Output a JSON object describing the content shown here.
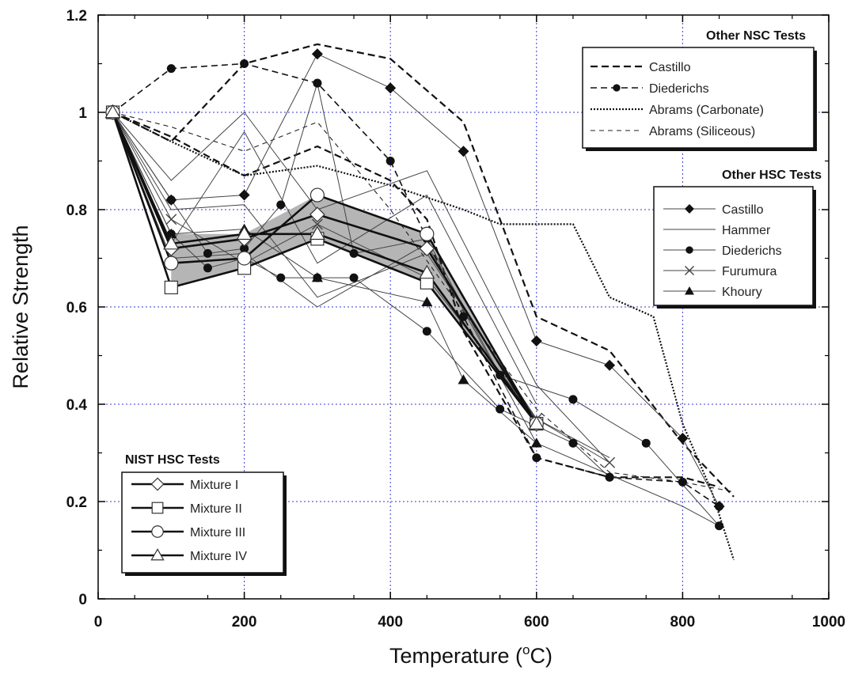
{
  "chart_data": {
    "type": "line",
    "xlabel": "Temperature (",
    "xlabel_sup": "o",
    "xlabel_unit": "C)",
    "ylabel": "Relative Strength",
    "xlim": [
      0,
      1000
    ],
    "ylim": [
      0,
      1.2
    ],
    "xticks": [
      "0",
      "200",
      "400",
      "600",
      "800",
      "1000"
    ],
    "yticks": [
      "0",
      "0.2",
      "0.4",
      "0.6",
      "0.8",
      "1",
      "1.2"
    ],
    "grid": true,
    "band": {
      "upper": [
        [
          100,
          0.75
        ],
        [
          200,
          0.75
        ],
        [
          300,
          0.83
        ],
        [
          450,
          0.75
        ],
        [
          600,
          0.36
        ]
      ],
      "lower": [
        [
          100,
          0.64
        ],
        [
          200,
          0.68
        ],
        [
          300,
          0.74
        ],
        [
          450,
          0.65
        ],
        [
          600,
          0.36
        ]
      ]
    },
    "legends": [
      {
        "title": "Other NSC Tests",
        "entries": [
          {
            "label": "Castillo",
            "style": "dash-bold",
            "marker": "none"
          },
          {
            "label": "Diederichs",
            "style": "dash",
            "marker": "circle"
          },
          {
            "label": "Abrams (Carbonate)",
            "style": "dot",
            "marker": "none"
          },
          {
            "label": "Abrams (Siliceous)",
            "style": "dash-thin",
            "marker": "none"
          }
        ]
      },
      {
        "title": "Other HSC Tests",
        "entries": [
          {
            "label": "Castillo",
            "style": "solid",
            "marker": "diamond-filled"
          },
          {
            "label": "Hammer",
            "style": "solid",
            "marker": "none"
          },
          {
            "label": "Diederichs",
            "style": "solid",
            "marker": "circle"
          },
          {
            "label": "Furumura",
            "style": "solid",
            "marker": "x"
          },
          {
            "label": "Khoury",
            "style": "solid",
            "marker": "triangle-filled"
          }
        ]
      },
      {
        "title": "NIST HSC Tests",
        "entries": [
          {
            "label": "Mixture I",
            "style": "solid-bold",
            "marker": "diamond-open"
          },
          {
            "label": "Mixture II",
            "style": "solid-bold",
            "marker": "square-open"
          },
          {
            "label": "Mixture III",
            "style": "solid-bold",
            "marker": "circle-open"
          },
          {
            "label": "Mixture IV",
            "style": "solid-bold",
            "marker": "triangle-open"
          }
        ]
      }
    ],
    "series": [
      {
        "name": "Castillo",
        "group": "Other NSC Tests",
        "style": "dash-bold",
        "marker": "none",
        "points": [
          [
            20,
            1.0
          ],
          [
            100,
            0.94
          ],
          [
            200,
            1.1
          ],
          [
            300,
            1.14
          ],
          [
            400,
            1.11
          ],
          [
            500,
            0.98
          ],
          [
            600,
            0.58
          ],
          [
            700,
            0.51
          ],
          [
            800,
            0.32
          ],
          [
            870,
            0.21
          ]
        ]
      },
      {
        "name": "Castillo",
        "group": "Other NSC Tests",
        "style": "dash-bold",
        "marker": "none",
        "points": [
          [
            20,
            1.0
          ],
          [
            100,
            0.95
          ],
          [
            200,
            0.87
          ],
          [
            300,
            0.93
          ],
          [
            400,
            0.86
          ],
          [
            450,
            0.78
          ],
          [
            500,
            0.55
          ],
          [
            600,
            0.29
          ],
          [
            700,
            0.25
          ],
          [
            800,
            0.25
          ],
          [
            850,
            0.23
          ]
        ]
      },
      {
        "name": "Diederichs",
        "group": "Other NSC Tests",
        "style": "dash",
        "marker": "circle",
        "points": [
          [
            20,
            1.0
          ],
          [
            100,
            1.09
          ],
          [
            200,
            1.1
          ],
          [
            300,
            1.06
          ],
          [
            400,
            0.9
          ],
          [
            500,
            0.58
          ],
          [
            600,
            0.29
          ],
          [
            700,
            0.25
          ],
          [
            800,
            0.24
          ],
          [
            850,
            0.19
          ]
        ]
      },
      {
        "name": "Abrams (Carbonate)",
        "group": "Other NSC Tests",
        "style": "dot",
        "marker": "none",
        "points": [
          [
            20,
            1.0
          ],
          [
            100,
            0.94
          ],
          [
            200,
            0.87
          ],
          [
            300,
            0.89
          ],
          [
            400,
            0.85
          ],
          [
            500,
            0.8
          ],
          [
            550,
            0.77
          ],
          [
            650,
            0.77
          ],
          [
            700,
            0.62
          ],
          [
            760,
            0.58
          ],
          [
            800,
            0.36
          ],
          [
            840,
            0.22
          ],
          [
            870,
            0.08
          ]
        ]
      },
      {
        "name": "Abrams (Siliceous)",
        "group": "Other NSC Tests",
        "style": "dash-thin",
        "marker": "none",
        "points": [
          [
            20,
            1.0
          ],
          [
            100,
            0.97
          ],
          [
            200,
            0.92
          ],
          [
            300,
            0.98
          ],
          [
            400,
            0.8
          ],
          [
            500,
            0.59
          ],
          [
            600,
            0.39
          ],
          [
            700,
            0.26
          ],
          [
            800,
            0.24
          ],
          [
            870,
            0.22
          ]
        ]
      },
      {
        "name": "Castillo",
        "group": "Other HSC Tests",
        "style": "solid",
        "marker": "diamond-filled",
        "points": [
          [
            20,
            1.0
          ],
          [
            100,
            0.82
          ],
          [
            200,
            0.83
          ],
          [
            300,
            1.12
          ],
          [
            400,
            1.05
          ],
          [
            500,
            0.92
          ],
          [
            600,
            0.53
          ],
          [
            700,
            0.48
          ],
          [
            800,
            0.33
          ],
          [
            850,
            0.19
          ]
        ]
      },
      {
        "name": "Hammer",
        "group": "Other HSC Tests",
        "style": "solid",
        "marker": "none",
        "points": [
          [
            20,
            1.0
          ],
          [
            100,
            0.86
          ],
          [
            200,
            1.0
          ],
          [
            300,
            0.8
          ],
          [
            450,
            0.88
          ],
          [
            600,
            0.44
          ],
          [
            700,
            0.28
          ]
        ]
      },
      {
        "name": "Hammer",
        "group": "Other HSC Tests",
        "style": "solid",
        "marker": "none",
        "points": [
          [
            20,
            1.0
          ],
          [
            100,
            0.73
          ],
          [
            200,
            0.96
          ],
          [
            300,
            0.69
          ],
          [
            450,
            0.83
          ],
          [
            600,
            0.4
          ]
        ]
      },
      {
        "name": "Hammer",
        "group": "Other HSC Tests",
        "style": "solid",
        "marker": "none",
        "points": [
          [
            20,
            1.0
          ],
          [
            100,
            0.8
          ],
          [
            200,
            0.81
          ],
          [
            300,
            0.62
          ],
          [
            450,
            0.71
          ],
          [
            600,
            0.37
          ],
          [
            700,
            0.29
          ]
        ]
      },
      {
        "name": "Hammer",
        "group": "Other HSC Tests",
        "style": "solid",
        "marker": "none",
        "points": [
          [
            20,
            1.0
          ],
          [
            100,
            0.7
          ],
          [
            200,
            0.71
          ],
          [
            300,
            0.6
          ],
          [
            450,
            0.73
          ],
          [
            600,
            0.32
          ],
          [
            800,
            0.19
          ],
          [
            850,
            0.15
          ]
        ]
      },
      {
        "name": "Diederichs",
        "group": "Other HSC Tests",
        "style": "solid",
        "marker": "circle",
        "points": [
          [
            20,
            1.0
          ],
          [
            100,
            0.82
          ],
          [
            150,
            0.71
          ],
          [
            200,
            0.72
          ],
          [
            250,
            0.81
          ],
          [
            300,
            1.06
          ],
          [
            350,
            0.71
          ],
          [
            450,
            0.74
          ],
          [
            550,
            0.46
          ],
          [
            650,
            0.41
          ],
          [
            750,
            0.32
          ],
          [
            850,
            0.15
          ]
        ]
      },
      {
        "name": "Diederichs",
        "group": "Other HSC Tests",
        "style": "solid",
        "marker": "circle",
        "points": [
          [
            20,
            1.0
          ],
          [
            100,
            0.75
          ],
          [
            150,
            0.68
          ],
          [
            200,
            0.7
          ],
          [
            250,
            0.66
          ],
          [
            300,
            0.66
          ],
          [
            350,
            0.66
          ],
          [
            450,
            0.55
          ],
          [
            550,
            0.39
          ],
          [
            650,
            0.32
          ],
          [
            700,
            0.25
          ]
        ]
      },
      {
        "name": "Furumura",
        "group": "Other HSC Tests",
        "style": "solid",
        "marker": "x",
        "points": [
          [
            20,
            1.0
          ],
          [
            100,
            0.78
          ],
          [
            200,
            0.69
          ],
          [
            300,
            0.77
          ],
          [
            450,
            0.66
          ],
          [
            600,
            0.37
          ],
          [
            700,
            0.28
          ]
        ]
      },
      {
        "name": "Khoury",
        "group": "Other HSC Tests",
        "style": "solid",
        "marker": "triangle-filled",
        "points": [
          [
            20,
            1.0
          ],
          [
            100,
            0.75
          ],
          [
            200,
            0.76
          ],
          [
            300,
            0.66
          ],
          [
            450,
            0.61
          ],
          [
            500,
            0.45
          ],
          [
            600,
            0.32
          ]
        ]
      },
      {
        "name": "Mixture I",
        "group": "NIST HSC Tests",
        "style": "solid-bold",
        "marker": "diamond-open",
        "points": [
          [
            20,
            1.0
          ],
          [
            100,
            0.72
          ],
          [
            200,
            0.74
          ],
          [
            300,
            0.79
          ],
          [
            450,
            0.72
          ],
          [
            600,
            0.36
          ]
        ]
      },
      {
        "name": "Mixture II",
        "group": "NIST HSC Tests",
        "style": "solid-bold",
        "marker": "square-open",
        "points": [
          [
            20,
            1.0
          ],
          [
            100,
            0.64
          ],
          [
            200,
            0.68
          ],
          [
            300,
            0.74
          ],
          [
            450,
            0.65
          ],
          [
            600,
            0.36
          ]
        ]
      },
      {
        "name": "Mixture III",
        "group": "NIST HSC Tests",
        "style": "solid-bold",
        "marker": "circle-open",
        "points": [
          [
            20,
            1.0
          ],
          [
            100,
            0.69
          ],
          [
            200,
            0.7
          ],
          [
            300,
            0.83
          ],
          [
            450,
            0.75
          ],
          [
            600,
            0.36
          ]
        ]
      },
      {
        "name": "Mixture IV",
        "group": "NIST HSC Tests",
        "style": "solid-bold",
        "marker": "triangle-open",
        "points": [
          [
            20,
            1.0
          ],
          [
            100,
            0.73
          ],
          [
            200,
            0.75
          ],
          [
            300,
            0.75
          ],
          [
            450,
            0.67
          ],
          [
            600,
            0.36
          ]
        ]
      }
    ]
  }
}
